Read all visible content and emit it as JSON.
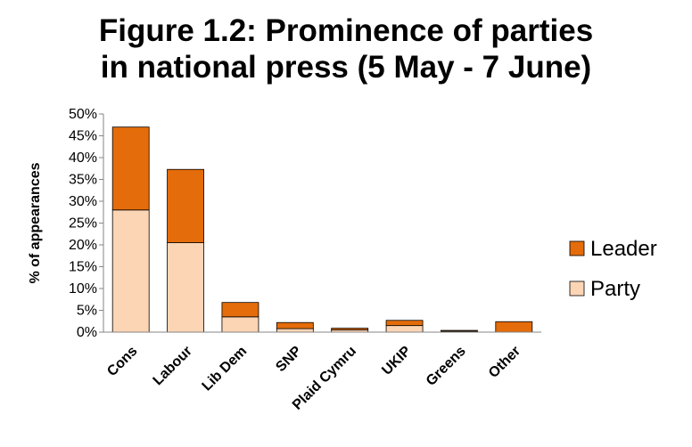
{
  "title_line1": "Figure 1.2: Prominence of parties",
  "title_line2": "in national press (5 May - 7 June)",
  "chart_data": {
    "type": "bar",
    "stacked": true,
    "title": "Figure 1.2: Prominence of parties in national press (5 May - 7 June)",
    "xlabel": "",
    "ylabel": "% of appearances",
    "ylim": [
      0,
      50
    ],
    "yticks": [
      "0%",
      "5%",
      "10%",
      "15%",
      "20%",
      "25%",
      "30%",
      "35%",
      "40%",
      "45%",
      "50%"
    ],
    "categories": [
      "Cons",
      "Labour",
      "Lib Dem",
      "SNP",
      "Plaid Cymru",
      "UKIP",
      "Greens",
      "Other"
    ],
    "series": [
      {
        "name": "Party",
        "color": "#FCD5B5",
        "values": [
          28,
          20.5,
          3.5,
          0.8,
          0.5,
          1.5,
          0.2,
          0
        ]
      },
      {
        "name": "Leader",
        "color": "#E46C0A",
        "values": [
          19,
          16.8,
          3.3,
          1.4,
          0.4,
          1.2,
          0.2,
          2.4
        ]
      }
    ],
    "legend_position": "right",
    "legend_order": [
      "Leader",
      "Party"
    ],
    "grid": false
  }
}
